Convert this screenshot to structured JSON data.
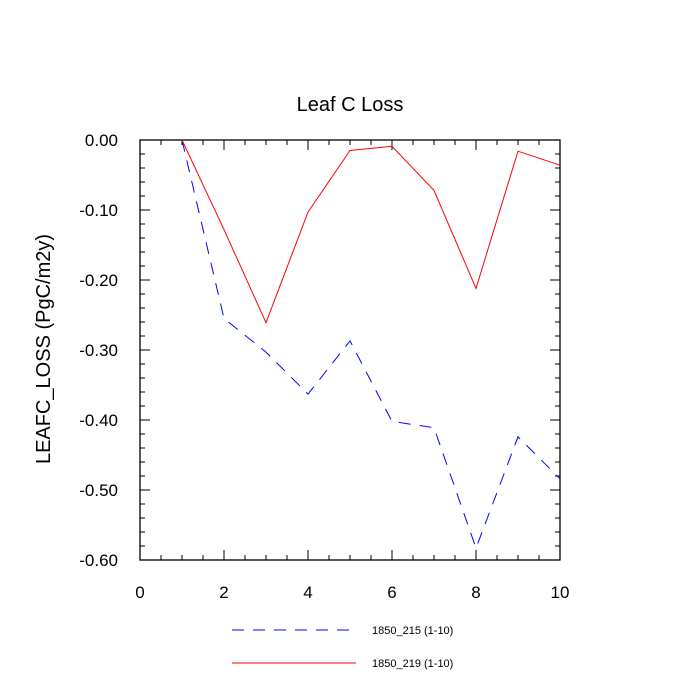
{
  "chart_data": {
    "type": "line",
    "title": "Leaf C Loss",
    "xlabel": "",
    "ylabel": "LEAFC_LOSS  (PgC/m2y)",
    "xlim": [
      0,
      10
    ],
    "ylim": [
      -0.6,
      0.0
    ],
    "x_ticks": [
      0,
      2,
      4,
      6,
      8,
      10
    ],
    "x_tick_labels": [
      "0",
      "2",
      "4",
      "6",
      "8",
      "10"
    ],
    "y_ticks": [
      0.0,
      -0.1,
      -0.2,
      -0.3,
      -0.4,
      -0.5,
      -0.6
    ],
    "y_tick_labels": [
      "0.00",
      "-0.10",
      "-0.20",
      "-0.30",
      "-0.40",
      "-0.50",
      "-0.60"
    ],
    "grid": false,
    "legend_position": "bottom-center",
    "x": [
      1,
      2,
      3,
      4,
      5,
      6,
      7,
      8,
      9,
      10
    ],
    "series": [
      {
        "name": "1850_215 (1-10)",
        "color": "#0000ff",
        "dash": "dashed",
        "values": [
          0.0,
          -0.255,
          -0.303,
          -0.363,
          -0.287,
          -0.402,
          -0.411,
          -0.583,
          -0.424,
          -0.484
        ]
      },
      {
        "name": "1850_219 (1-10)",
        "color": "#ff0000",
        "dash": "solid",
        "values": [
          0.0,
          -0.128,
          -0.261,
          -0.103,
          -0.015,
          -0.009,
          -0.072,
          -0.212,
          -0.016,
          -0.036
        ]
      }
    ]
  }
}
